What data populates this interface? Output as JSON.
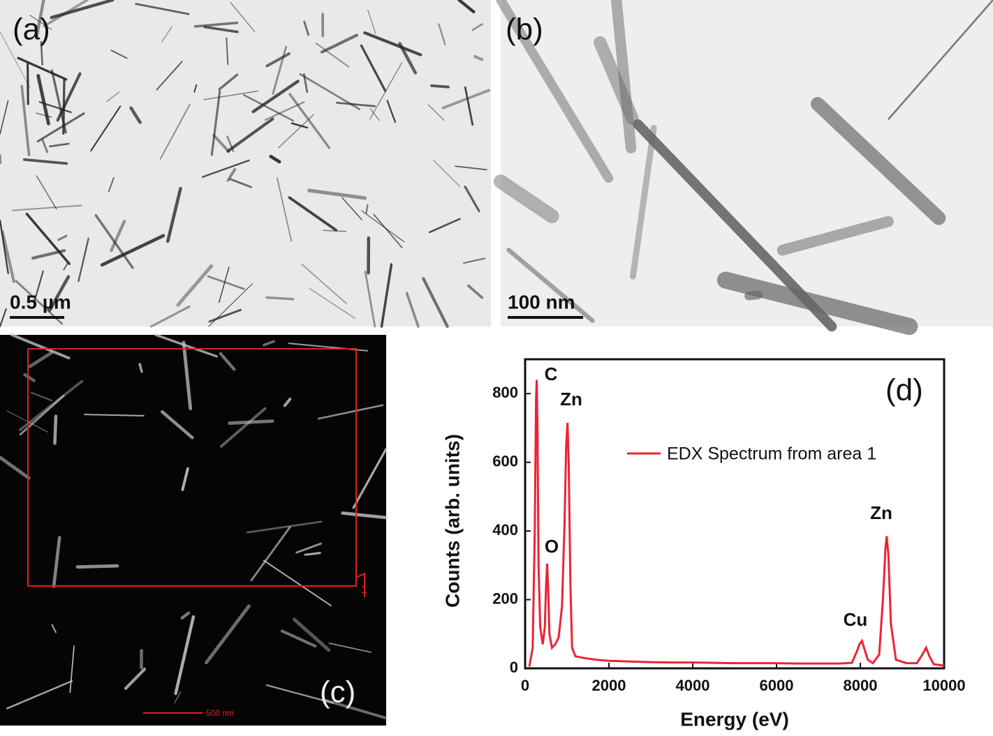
{
  "panels": [
    {
      "label": "(a)",
      "scale_bar": "0.5 µm"
    },
    {
      "label": "(b)",
      "scale_bar": "100 nm"
    },
    {
      "label": "(c)",
      "scale_bar": "500 nm",
      "region": "1"
    }
  ],
  "chart_data": {
    "type": "line",
    "panel_label": "(d)",
    "xlabel": "Energy (eV)",
    "ylabel": "Counts (arb. units)",
    "xlim": [
      0,
      10000
    ],
    "ylim": [
      0,
      900
    ],
    "xticks": [
      0,
      2000,
      4000,
      6000,
      8000,
      10000
    ],
    "yticks": [
      0,
      200,
      400,
      600,
      800
    ],
    "legend": "upper right",
    "annotations": [
      "C",
      "Zn",
      "O",
      "Cu",
      "Zn"
    ],
    "x": [
      100,
      180,
      230,
      260,
      277,
      295,
      320,
      360,
      420,
      470,
      500,
      525,
      550,
      580,
      640,
      720,
      800,
      880,
      940,
      980,
      1012,
      1040,
      1080,
      1120,
      1200,
      1400,
      1700,
      2000,
      2500,
      3000,
      3500,
      4000,
      4500,
      5000,
      5500,
      6000,
      6500,
      7000,
      7500,
      7800,
      7920,
      7980,
      8040,
      8100,
      8180,
      8300,
      8450,
      8540,
      8600,
      8630,
      8670,
      8730,
      8850,
      9100,
      9350,
      9480,
      9570,
      9650,
      9750,
      10000
    ],
    "series": [
      {
        "name": "EDX Spectrum from area 1",
        "color": "#ee2233",
        "values": [
          5,
          60,
          400,
          780,
          840,
          700,
          300,
          120,
          70,
          120,
          240,
          305,
          230,
          100,
          60,
          70,
          90,
          180,
          420,
          650,
          715,
          600,
          250,
          60,
          35,
          30,
          25,
          22,
          20,
          18,
          17,
          17,
          16,
          15,
          15,
          15,
          14,
          14,
          14,
          16,
          50,
          70,
          80,
          55,
          25,
          15,
          40,
          200,
          350,
          385,
          330,
          130,
          25,
          15,
          15,
          40,
          60,
          35,
          12,
          8
        ]
      }
    ]
  }
}
